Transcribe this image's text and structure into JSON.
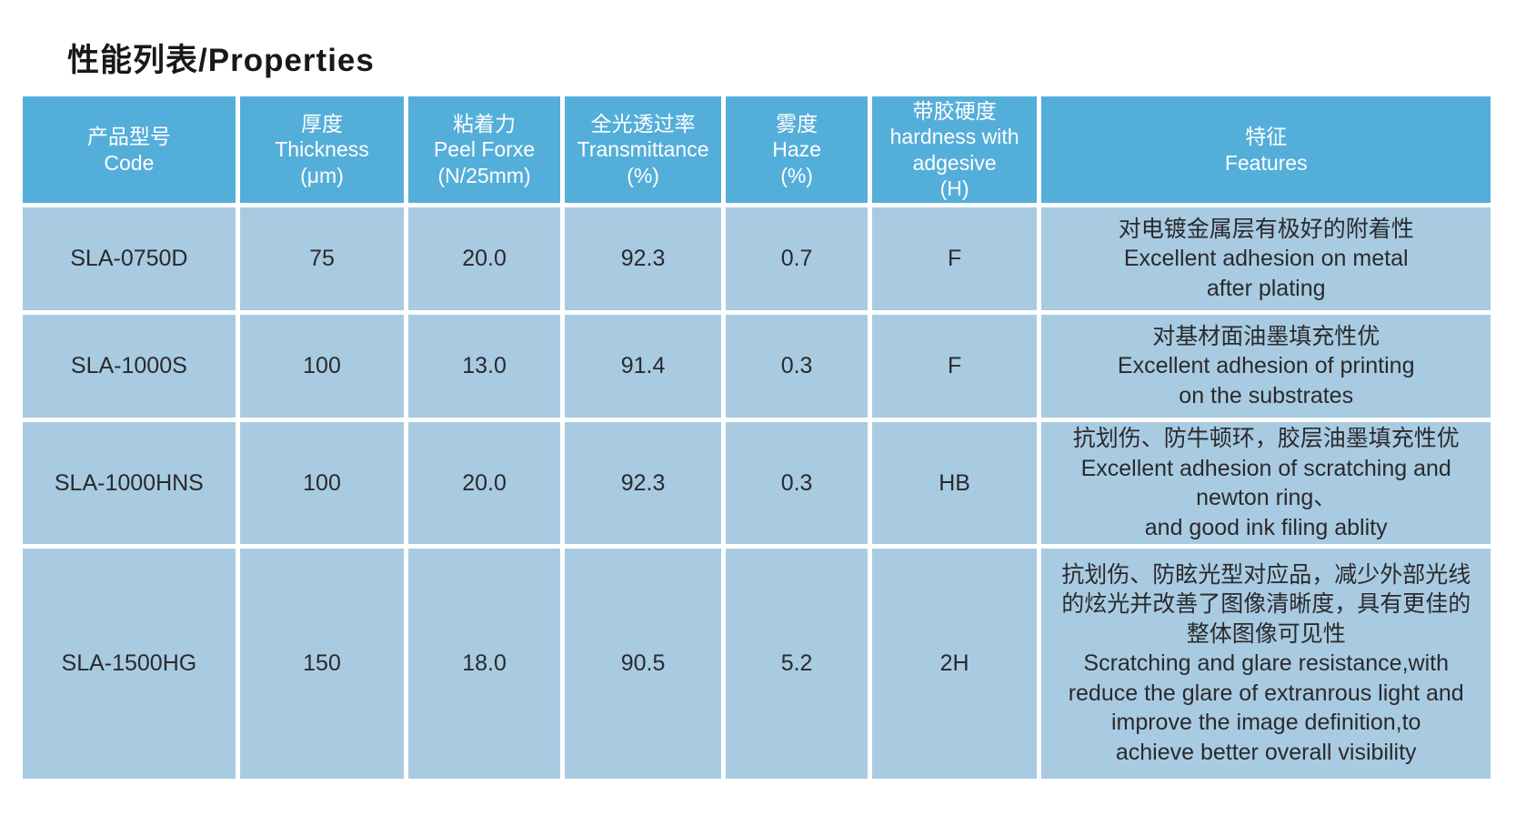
{
  "page": {
    "title": "性能列表/Properties"
  },
  "colors": {
    "header_bg": "#54aeda",
    "row_bg": "#a9cbe2",
    "header_text": "#ffffff",
    "body_text": "#2a2a2c",
    "title_text": "#1a1717"
  },
  "table": {
    "columns": [
      {
        "id": "code",
        "label": "产品型号\nCode"
      },
      {
        "id": "thickness",
        "label": "厚度\nThickness\n(μm)"
      },
      {
        "id": "peel_force",
        "label": "粘着力\nPeel Forxe\n(N/25mm)"
      },
      {
        "id": "transmittance",
        "label": "全光透过率\nTransmittance\n(%)"
      },
      {
        "id": "haze",
        "label": "雾度\nHaze\n(%)"
      },
      {
        "id": "hardness",
        "label": "带胶硬度\nhardness with\nadgesive\n(H)"
      },
      {
        "id": "features",
        "label": "特征\nFeatures"
      }
    ],
    "rows": [
      {
        "code": "SLA-0750D",
        "thickness": "75",
        "peel_force": "20.0",
        "transmittance": "92.3",
        "haze": "0.7",
        "hardness": "F",
        "features": "对电镀金属层有极好的附着性\nExcellent adhesion on metal\nafter plating"
      },
      {
        "code": "SLA-1000S",
        "thickness": "100",
        "peel_force": "13.0",
        "transmittance": "91.4",
        "haze": "0.3",
        "hardness": "F",
        "features": "对基材面油墨填充性优\nExcellent adhesion of printing\non the substrates"
      },
      {
        "code": "SLA-1000HNS",
        "thickness": "100",
        "peel_force": "20.0",
        "transmittance": "92.3",
        "haze": "0.3",
        "hardness": "HB",
        "features": "抗划伤、防牛顿环，胶层油墨填充性优\nExcellent adhesion of scratching and\nnewton ring、\nand good ink filing ablity"
      },
      {
        "code": "SLA-1500HG",
        "thickness": "150",
        "peel_force": "18.0",
        "transmittance": "90.5",
        "haze": "5.2",
        "hardness": "2H",
        "features": "抗划伤、防眩光型对应品，减少外部光线\n的炫光并改善了图像清晰度，具有更佳的\n整体图像可见性\nScratching and glare resistance,with\nreduce the glare of extranrous light and\nimprove the image definition,to\nachieve better overall visibility"
      }
    ]
  }
}
